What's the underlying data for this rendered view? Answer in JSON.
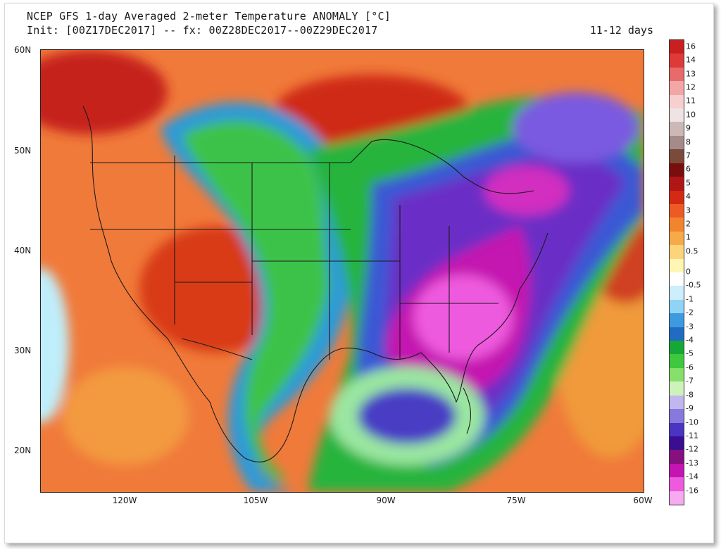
{
  "header": {
    "title": "NCEP GFS 1-day Averaged 2-meter Temperature ANOMALY [°C]",
    "init_line": "Init: [00Z17DEC2017] -- fx: 00Z28DEC2017--00Z29DEC2017",
    "lead_time": "11-12 days"
  },
  "map": {
    "lat_labels": [
      "60N",
      "50N",
      "40N",
      "30N",
      "20N"
    ],
    "lon_labels": [
      "120W",
      "105W",
      "90W",
      "75W",
      "60W"
    ]
  },
  "colorbar": {
    "labels": [
      "16",
      "14",
      "13",
      "12",
      "11",
      "10",
      "9",
      "8",
      "7",
      "6",
      "5",
      "4",
      "3",
      "2",
      "1",
      "0.5",
      "0",
      "-0.5",
      "-1",
      "-2",
      "-3",
      "-4",
      "-5",
      "-6",
      "-7",
      "-8",
      "-9",
      "-10",
      "-11",
      "-12",
      "-13",
      "-14",
      "-16"
    ],
    "colors": [
      "#c81f1f",
      "#de3a3a",
      "#e86a6a",
      "#f3a6a6",
      "#f8cfcf",
      "#efe3e3",
      "#cdb8b8",
      "#a58a8a",
      "#7a4a3a",
      "#7a0e0e",
      "#b01616",
      "#d42a14",
      "#ee5a24",
      "#f3842e",
      "#f7aa4a",
      "#fcd47a",
      "#fff6b4",
      "#ffffff",
      "#cdeefb",
      "#8fd4f5",
      "#3e9ae0",
      "#1f6cc2",
      "#16a836",
      "#3ec83e",
      "#86df6a",
      "#cdf3bb",
      "#c2b6ee",
      "#8678dc",
      "#4a34c2",
      "#3a0e90",
      "#86107e",
      "#c414b2",
      "#ee5ade",
      "#f8aaf0"
    ]
  }
}
